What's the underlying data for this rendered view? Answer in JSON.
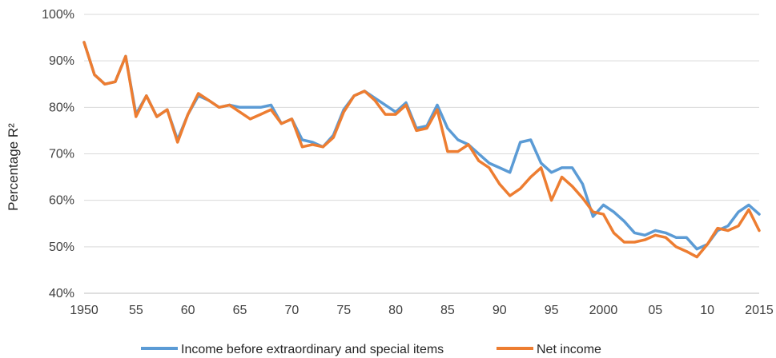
{
  "chart_data": {
    "type": "line",
    "title": "",
    "xlabel": "",
    "ylabel": "Percentage R²",
    "xlim": [
      1950,
      2015
    ],
    "ylim": [
      40,
      100
    ],
    "y_ticks": [
      40,
      50,
      60,
      70,
      80,
      90,
      100
    ],
    "y_tick_labels": [
      "40%",
      "50%",
      "60%",
      "70%",
      "80%",
      "90%",
      "100%"
    ],
    "x_ticks": [
      1950,
      1955,
      1960,
      1965,
      1970,
      1975,
      1980,
      1985,
      1990,
      1995,
      2000,
      2005,
      2010,
      2015
    ],
    "x_tick_labels": [
      "1950",
      "55",
      "60",
      "65",
      "70",
      "75",
      "80",
      "85",
      "90",
      "95",
      "2000",
      "05",
      "10",
      "2015"
    ],
    "grid": "horizontal",
    "legend_position": "bottom",
    "x": [
      1950,
      1951,
      1952,
      1953,
      1954,
      1955,
      1956,
      1957,
      1958,
      1959,
      1960,
      1961,
      1962,
      1963,
      1964,
      1965,
      1966,
      1967,
      1968,
      1969,
      1970,
      1971,
      1972,
      1973,
      1974,
      1975,
      1976,
      1977,
      1978,
      1979,
      1980,
      1981,
      1982,
      1983,
      1984,
      1985,
      1986,
      1987,
      1988,
      1989,
      1990,
      1991,
      1992,
      1993,
      1994,
      1995,
      1996,
      1997,
      1998,
      1999,
      2000,
      2001,
      2002,
      2003,
      2004,
      2005,
      2006,
      2007,
      2008,
      2009,
      2010,
      2011,
      2012,
      2013,
      2014,
      2015
    ],
    "series": [
      {
        "name": "Income before extraordinary and special items",
        "color": "#5B9BD5",
        "values": [
          94,
          87,
          85,
          85.5,
          91,
          78.5,
          82.5,
          78,
          79.5,
          73,
          78.5,
          82.5,
          81.5,
          80,
          80.5,
          80,
          80,
          80,
          80.5,
          76.5,
          77.5,
          73,
          72.5,
          71.5,
          74,
          79.5,
          82.5,
          83.5,
          82,
          80.5,
          79,
          81,
          75.5,
          76,
          80.5,
          75.5,
          73,
          72,
          70,
          68,
          67,
          66,
          72.5,
          73,
          68,
          66,
          67,
          67,
          63.5,
          56.5,
          59,
          57.5,
          55.5,
          53,
          52.5,
          53.5,
          53,
          52,
          52,
          49.5,
          50.5,
          53.5,
          54.5,
          57.5,
          59,
          57
        ]
      },
      {
        "name": "Net income",
        "color": "#ED7D31",
        "values": [
          94,
          87,
          85,
          85.5,
          91,
          78,
          82.5,
          78,
          79.5,
          72.5,
          78.5,
          83,
          81.5,
          80,
          80.5,
          79,
          77.5,
          78.5,
          79.5,
          76.5,
          77.5,
          71.5,
          72,
          71.5,
          73.5,
          79,
          82.5,
          83.5,
          81.5,
          78.5,
          78.5,
          80.5,
          75,
          75.5,
          79.5,
          70.5,
          70.5,
          72,
          68.5,
          67,
          63.5,
          61,
          62.5,
          65,
          67,
          60,
          65,
          63,
          60.5,
          57.5,
          57,
          53,
          51,
          51,
          51.5,
          52.5,
          52,
          50,
          49,
          47.8,
          50.5,
          54,
          53.5,
          54.5,
          58,
          53.5
        ]
      }
    ]
  }
}
